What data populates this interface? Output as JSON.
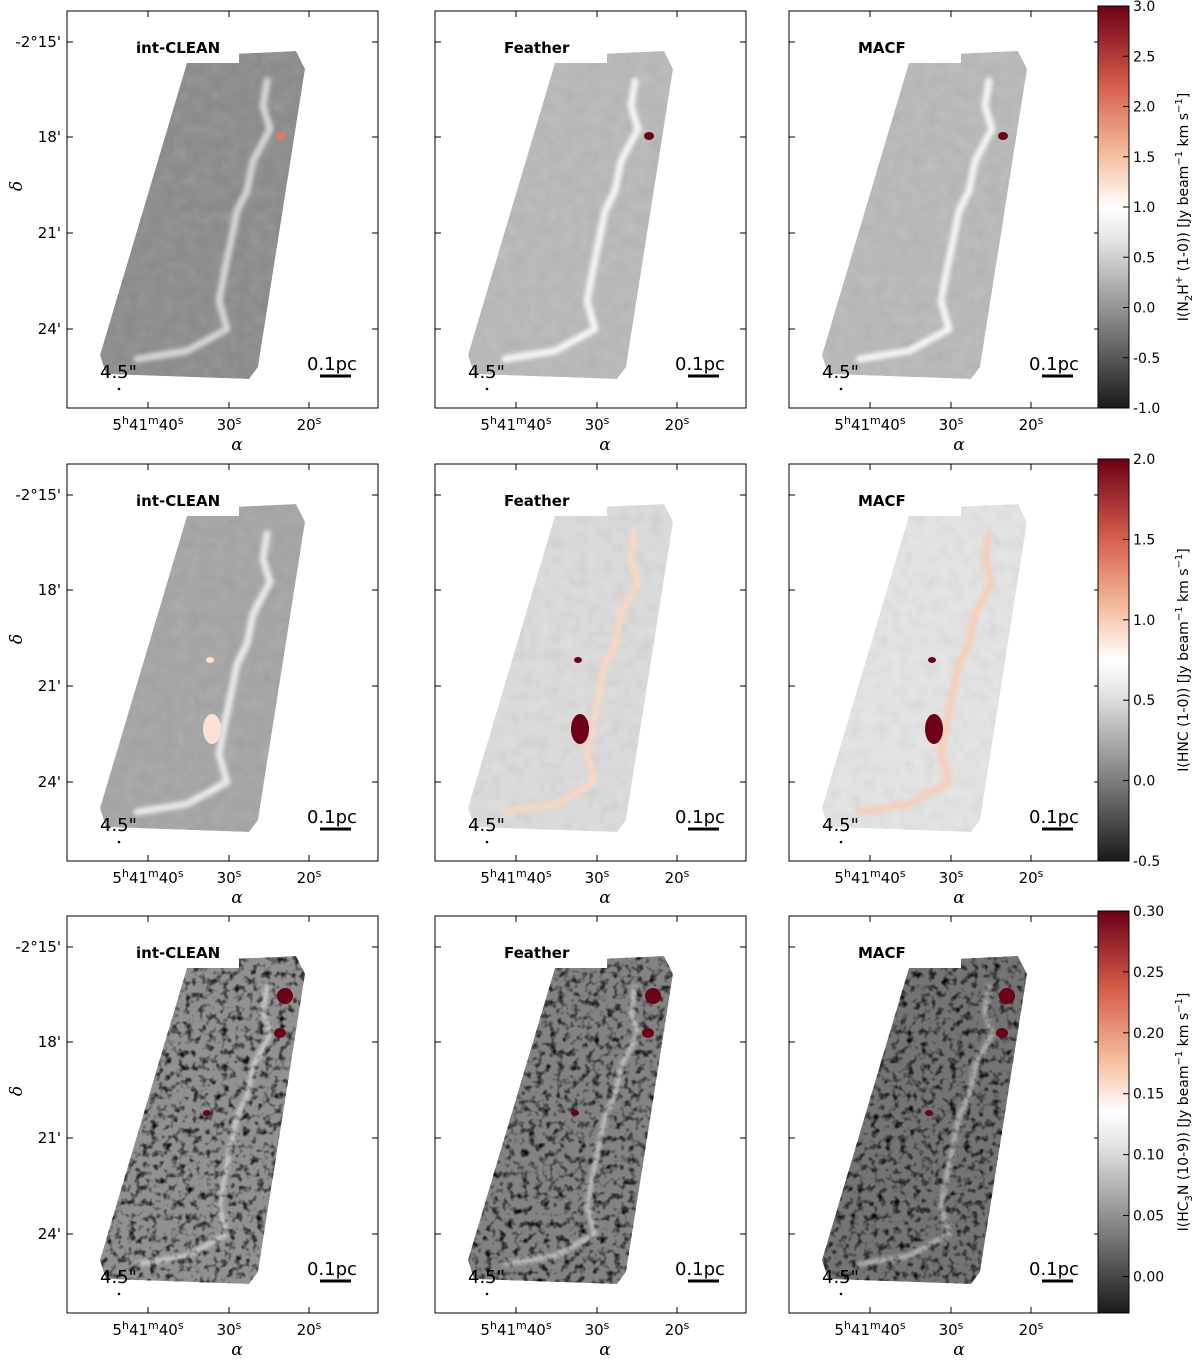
{
  "chart_data": {
    "type": "heatmap",
    "grid": {
      "rows": [
        "N2H+ (1-0)",
        "HNC (1-0)",
        "HC3N (10-9)"
      ],
      "columns": [
        "int-CLEAN",
        "Feather",
        "MACF"
      ]
    },
    "panel_labels": [
      "int-CLEAN",
      "Feather",
      "MACF"
    ],
    "ra_ticks": [
      "5h41m40s",
      "30s",
      "20s"
    ],
    "ra_tick_parts": [
      {
        "h": "5",
        "hs": "h",
        "m": "41",
        "ms": "m",
        "s": "40",
        "ss": "s"
      },
      {
        "s": "30",
        "ss": "s"
      },
      {
        "s": "20",
        "ss": "s"
      }
    ],
    "dec_ticks": [
      "-2°15'",
      "18'",
      "21'",
      "24'"
    ],
    "xlabel": "α",
    "ylabel": "δ",
    "beam_label": "4.5\"",
    "scalebar_label": "0.1pc",
    "colormap": {
      "low": "#000000",
      "mid": "#ffffff",
      "high": "#7a0016",
      "name": "RdGy_r"
    },
    "rows": [
      {
        "molecule": "N2H+ (1-0)",
        "colorbar": {
          "label_parts": {
            "a": "I(N",
            "b": "2",
            "c": "H",
            "d": "+",
            "e": " (1-0)) [Jy beam",
            "f": "−1",
            "g": " km s",
            "h": "−1",
            "i": "]"
          },
          "range": [
            -1.0,
            3.0
          ],
          "ticks": [
            "-1.0",
            "-0.5",
            "0.0",
            "0.5",
            "1.0",
            "1.5",
            "2.0",
            "2.5",
            "3.0"
          ]
        },
        "panels": [
          {
            "name": "int-CLEAN",
            "background_level": -0.1,
            "peak_level": 2.0
          },
          {
            "name": "Feather",
            "background_level": 0.3,
            "peak_level": 3.0
          },
          {
            "name": "MACF",
            "background_level": 0.3,
            "peak_level": 3.0
          }
        ]
      },
      {
        "molecule": "HNC (1-0)",
        "colorbar": {
          "label_parts": {
            "a": "I(HNC (1-0)) [Jy beam",
            "f": "−1",
            "g": " km s",
            "h": "−1",
            "i": "]"
          },
          "range": [
            -0.5,
            2.0
          ],
          "ticks": [
            "-0.5",
            "0.0",
            "0.5",
            "1.0",
            "1.5",
            "2.0"
          ]
        },
        "panels": [
          {
            "name": "int-CLEAN",
            "background_level": 0.2,
            "peak_level": 1.0
          },
          {
            "name": "Feather",
            "background_level": 0.5,
            "peak_level": 2.0
          },
          {
            "name": "MACF",
            "background_level": 0.55,
            "peak_level": 2.0
          }
        ]
      },
      {
        "molecule": "HC3N (10-9)",
        "colorbar": {
          "label_parts": {
            "a": "I(HC",
            "b": "3",
            "c": "N (10-9)) [Jy beam",
            "f": "−1",
            "g": " km s",
            "h": "−1",
            "i": "]"
          },
          "range": [
            -0.03,
            0.3
          ],
          "ticks": [
            "0.00",
            "0.05",
            "0.10",
            "0.15",
            "0.20",
            "0.25",
            "0.30"
          ]
        },
        "panels": [
          {
            "name": "int-CLEAN",
            "background_level": 0.05,
            "peak_level": 0.3
          },
          {
            "name": "Feather",
            "background_level": 0.04,
            "peak_level": 0.3
          },
          {
            "name": "MACF",
            "background_level": 0.03,
            "peak_level": 0.3
          }
        ]
      }
    ]
  }
}
